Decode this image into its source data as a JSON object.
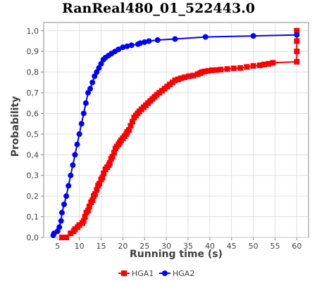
{
  "chart_data": {
    "type": "line",
    "title": "RanReal480_01_522443.0",
    "xlabel": "Running time (s)",
    "ylabel": "Probability",
    "xlim": [
      1.8,
      62.7
    ],
    "ylim": [
      0.0,
      1.04
    ],
    "x_ticks": [
      5,
      10,
      15,
      20,
      25,
      30,
      35,
      40,
      45,
      50,
      55,
      60
    ],
    "x_tick_labels": [
      "5",
      "10",
      "15",
      "20",
      "25",
      "30",
      "35",
      "40",
      "45",
      "50",
      "55",
      "60"
    ],
    "y_ticks": [
      0.0,
      0.1,
      0.2,
      0.3,
      0.4,
      0.5,
      0.6,
      0.7,
      0.8,
      0.9,
      1.0
    ],
    "y_tick_labels": [
      "0,0",
      "0,1",
      "0,2",
      "0,3",
      "0,4",
      "0,5",
      "0,6",
      "0,7",
      "0,8",
      "0,9",
      "1,0"
    ],
    "grid": true,
    "legend_position": "bottom-center",
    "series": [
      {
        "name": "HGA1",
        "color": "#ff0000",
        "marker": "square",
        "x": [
          6.0,
          6.3,
          7.0,
          8.0,
          8.7,
          9.0,
          9.6,
          10.0,
          10.7,
          11.0,
          11.3,
          11.6,
          12.0,
          12.3,
          12.7,
          13.0,
          13.3,
          13.6,
          14.0,
          14.3,
          14.6,
          15.0,
          15.3,
          15.6,
          16.0,
          16.4,
          16.8,
          17.0,
          17.3,
          17.6,
          18.0,
          18.3,
          18.6,
          19.0,
          19.3,
          19.6,
          20.0,
          20.4,
          20.8,
          21.0,
          21.4,
          21.8,
          22.2,
          22.6,
          23.0,
          23.4,
          23.8,
          24.3,
          24.8,
          25.3,
          25.8,
          26.3,
          26.8,
          27.3,
          27.8,
          28.4,
          29.0,
          29.6,
          30.2,
          30.8,
          31.4,
          32.0,
          32.7,
          33.4,
          34.2,
          35.2,
          36.2,
          37.2,
          37.8,
          38.2,
          38.8,
          39.6,
          40.5,
          41.5,
          42.5,
          44.0,
          45.5,
          47.0,
          48.5,
          50.0,
          51.5,
          52.5,
          53.5,
          54.5,
          60.0,
          60.0,
          60.0,
          60.0
        ],
        "y": [
          0.0,
          0.0,
          0.0,
          0.02,
          0.03,
          0.04,
          0.05,
          0.06,
          0.07,
          0.08,
          0.1,
          0.12,
          0.13,
          0.15,
          0.17,
          0.18,
          0.2,
          0.21,
          0.23,
          0.25,
          0.26,
          0.28,
          0.29,
          0.31,
          0.33,
          0.34,
          0.35,
          0.36,
          0.38,
          0.39,
          0.41,
          0.43,
          0.44,
          0.45,
          0.46,
          0.47,
          0.48,
          0.49,
          0.5,
          0.51,
          0.52,
          0.54,
          0.56,
          0.58,
          0.59,
          0.6,
          0.61,
          0.62,
          0.63,
          0.64,
          0.65,
          0.66,
          0.67,
          0.68,
          0.69,
          0.7,
          0.71,
          0.72,
          0.73,
          0.74,
          0.75,
          0.76,
          0.765,
          0.77,
          0.775,
          0.78,
          0.783,
          0.79,
          0.795,
          0.8,
          0.803,
          0.806,
          0.809,
          0.81,
          0.812,
          0.815,
          0.818,
          0.82,
          0.825,
          0.83,
          0.833,
          0.837,
          0.84,
          0.845,
          0.85,
          0.9,
          0.95,
          1.0
        ]
      },
      {
        "name": "HGA2",
        "color": "#0000ff",
        "marker": "circle",
        "x": [
          4.0,
          4.2,
          5.0,
          5.4,
          5.8,
          6.0,
          6.5,
          7.0,
          7.5,
          8.0,
          8.5,
          9.0,
          9.5,
          10.0,
          10.5,
          11.0,
          11.5,
          12.0,
          12.5,
          13.0,
          13.5,
          14.0,
          14.5,
          15.0,
          15.5,
          16.0,
          16.7,
          17.4,
          18.2,
          19.0,
          20.0,
          21.0,
          22.0,
          23.5,
          24.0,
          25.0,
          26.0,
          28.0,
          32.0,
          39.0,
          50.0,
          60.0
        ],
        "y": [
          0.01,
          0.02,
          0.03,
          0.05,
          0.08,
          0.12,
          0.16,
          0.2,
          0.25,
          0.3,
          0.35,
          0.4,
          0.45,
          0.5,
          0.55,
          0.6,
          0.65,
          0.7,
          0.72,
          0.75,
          0.78,
          0.8,
          0.82,
          0.84,
          0.86,
          0.87,
          0.88,
          0.89,
          0.9,
          0.91,
          0.92,
          0.925,
          0.93,
          0.935,
          0.94,
          0.945,
          0.95,
          0.955,
          0.96,
          0.97,
          0.975,
          0.98
        ]
      }
    ]
  }
}
